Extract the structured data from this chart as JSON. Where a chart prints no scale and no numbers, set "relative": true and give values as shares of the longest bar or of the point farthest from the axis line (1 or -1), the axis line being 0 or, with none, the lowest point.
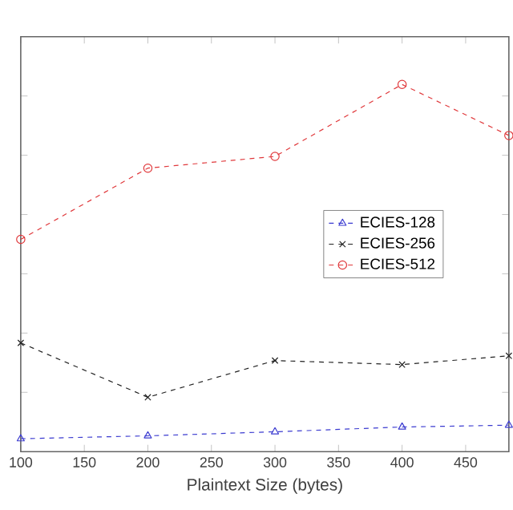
{
  "chart_data": {
    "type": "line",
    "xlabel": "Plaintext Size (bytes)",
    "relative": true,
    "x": [
      100,
      200,
      300,
      400,
      484
    ],
    "xlim": [
      100,
      484
    ],
    "xticks": [
      100,
      150,
      200,
      250,
      300,
      350,
      400,
      450
    ],
    "legend": "right",
    "line_style": "dashed",
    "grid": false,
    "series": [
      {
        "name": "ECIES-128",
        "color": "#3b3bd0",
        "marker": "triangle",
        "values": [
          0.035,
          0.043,
          0.054,
          0.067,
          0.072
        ]
      },
      {
        "name": "ECIES-256",
        "color": "#222222",
        "marker": "cross",
        "values": [
          0.296,
          0.148,
          0.248,
          0.237,
          0.261
        ]
      },
      {
        "name": "ECIES-512",
        "color": "#e0383b",
        "marker": "circle",
        "values": [
          0.578,
          0.772,
          0.804,
          1,
          0.861
        ]
      }
    ]
  }
}
